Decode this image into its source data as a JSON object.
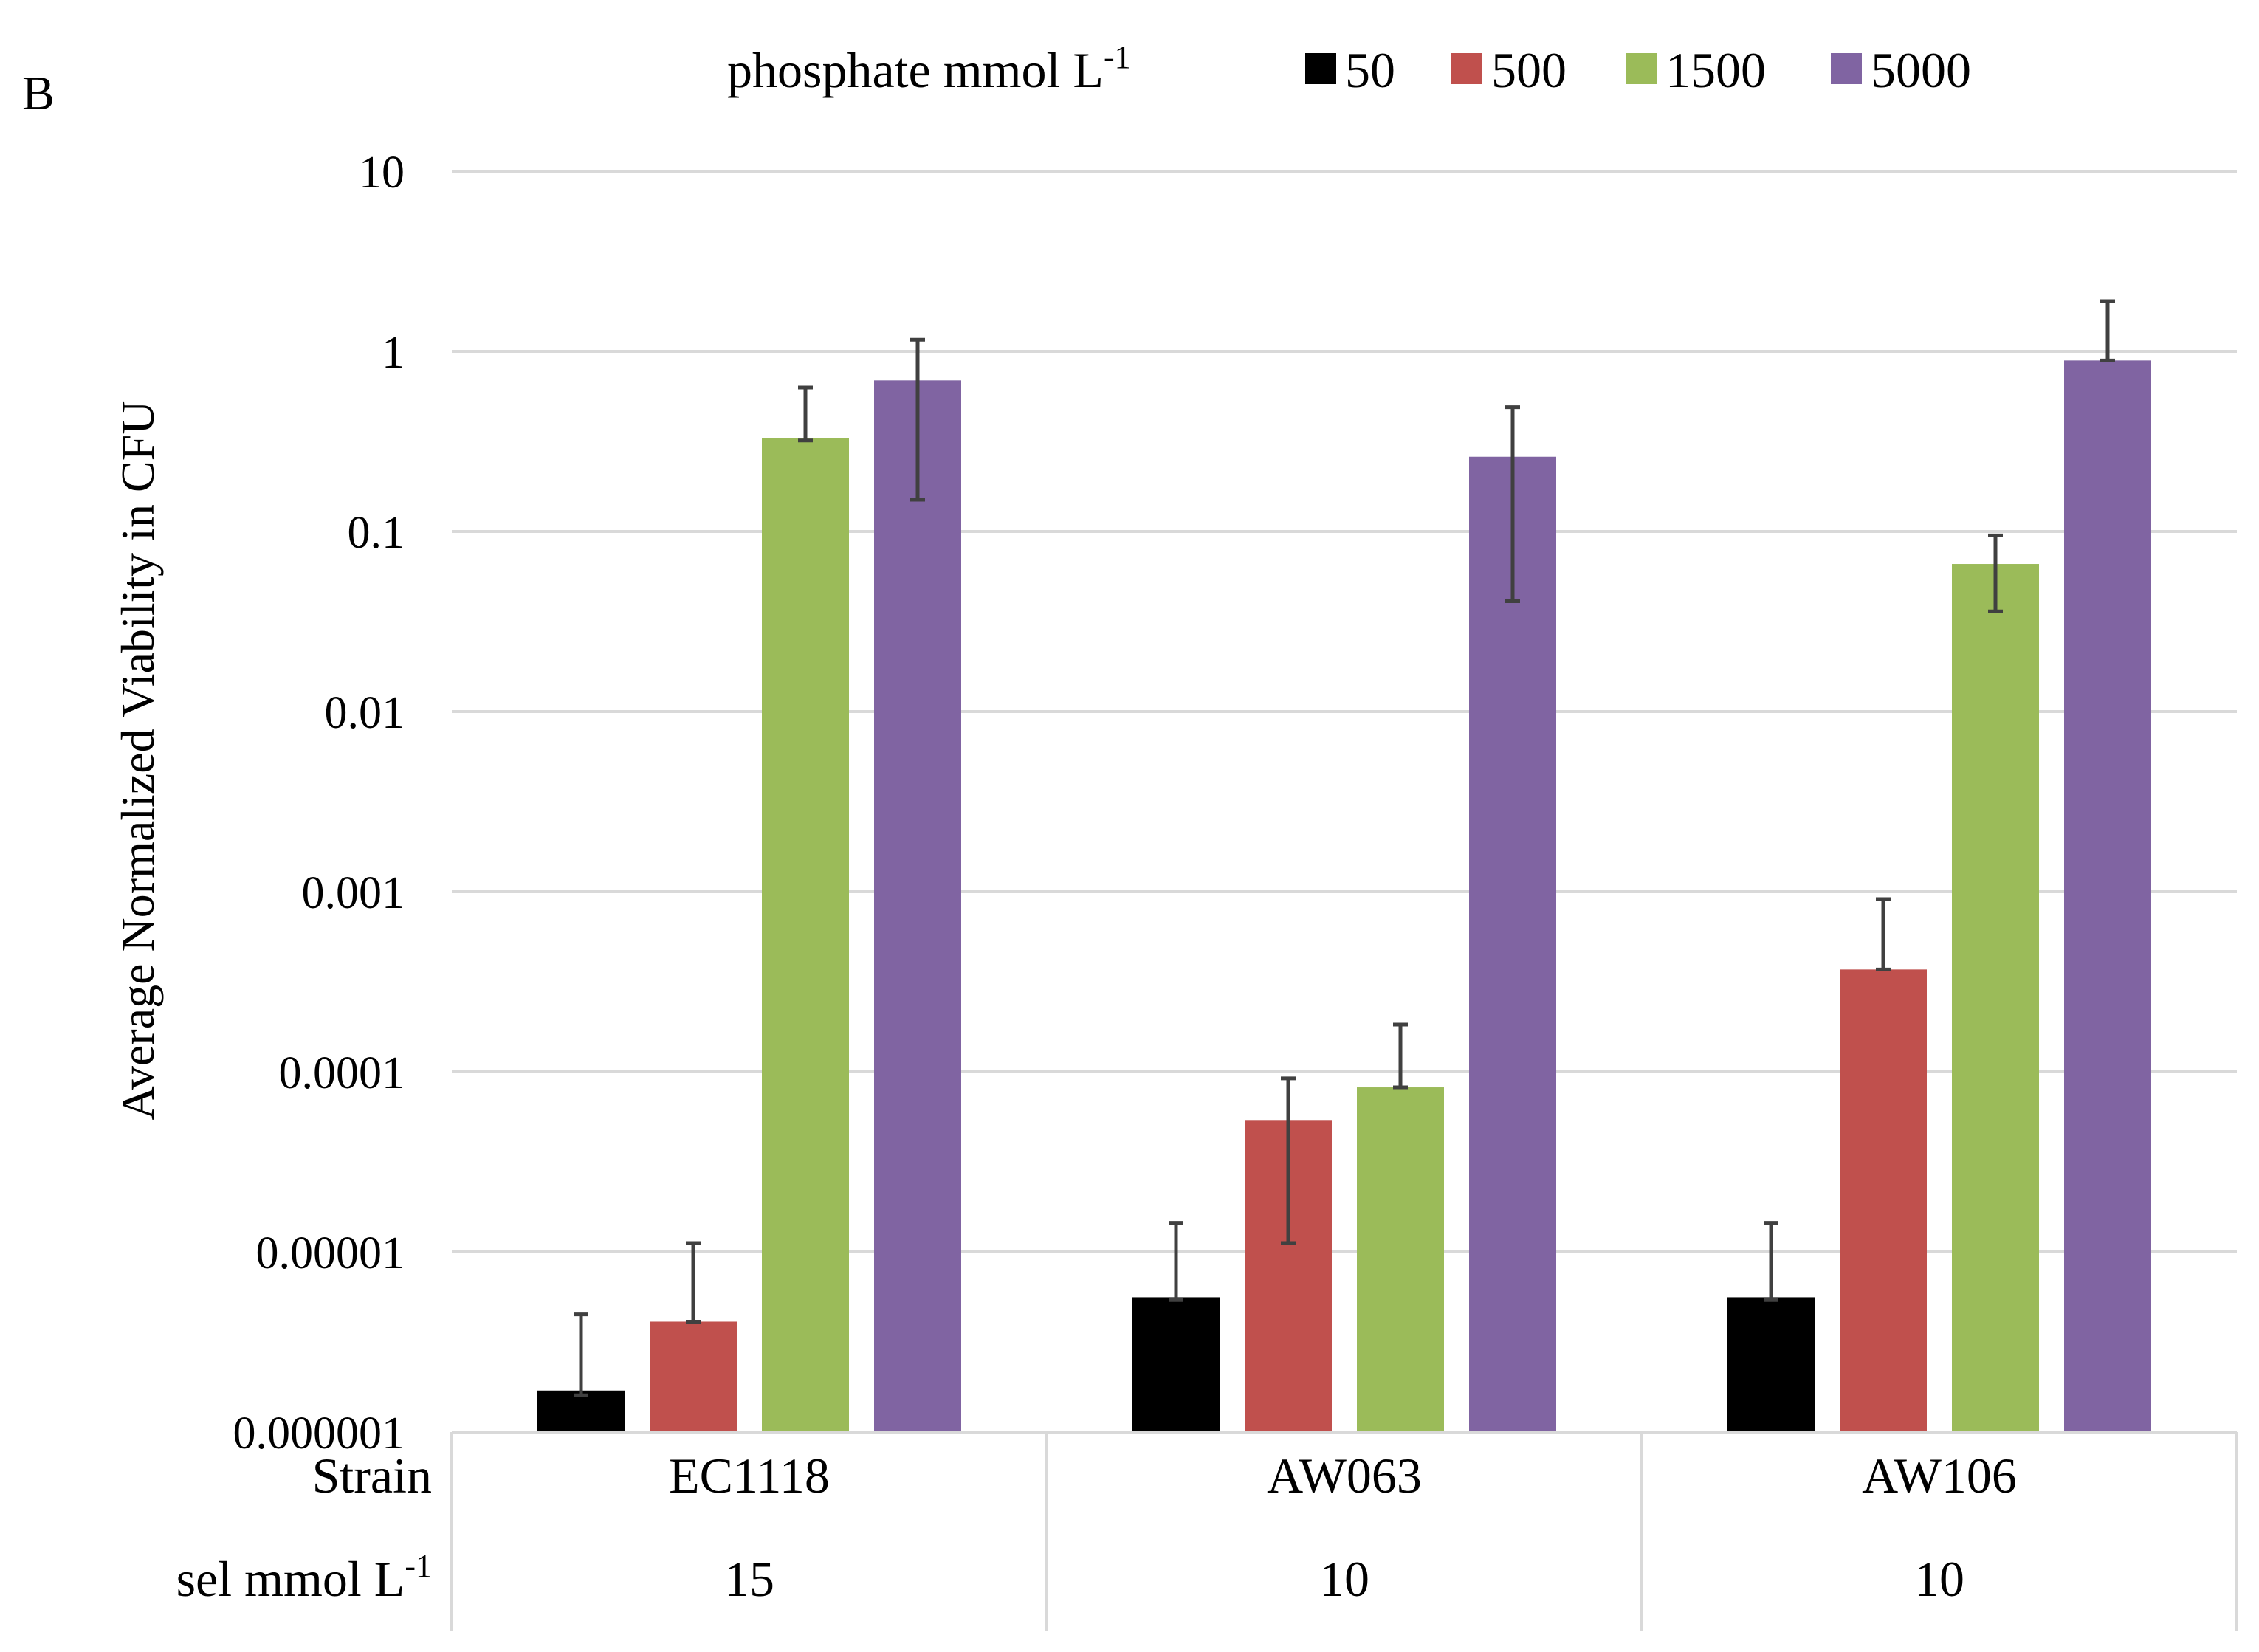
{
  "panel_label": "B",
  "chart_data": {
    "type": "bar",
    "yscale": "log",
    "ylim": [
      1e-06,
      10
    ],
    "ylabel": "Average Normalized Viability in CFU",
    "yticks": [
      "10",
      "1",
      "0.1",
      "0.01",
      "0.001",
      "0.0001",
      "0.00001",
      "0.000001"
    ],
    "ytick_values": [
      10,
      1,
      0.1,
      0.01,
      0.001,
      0.0001,
      1e-05,
      1e-06
    ],
    "grid": true,
    "legend": {
      "title": "phosphate mmol  L",
      "title_sup": "-1",
      "position": "top"
    },
    "categories": [
      "EC1118",
      "AW063",
      "AW106"
    ],
    "category_rows": [
      {
        "label": "Strain",
        "values": [
          "EC1118",
          "AW063",
          "AW106"
        ]
      },
      {
        "label": "sel mmol L",
        "label_sup": "-1",
        "values": [
          "15",
          "10",
          "10"
        ]
      }
    ],
    "series": [
      {
        "name": "50",
        "color": "#000000",
        "values": [
          1.7e-06,
          5.6e-06,
          5.6e-06
        ],
        "err_upper": [
          4.5e-06,
          1.45e-05,
          1.45e-05
        ],
        "err_lower": [
          1.6e-06,
          5.4e-06,
          5.4e-06
        ]
      },
      {
        "name": "500",
        "color": "#c0504d",
        "values": [
          4.1e-06,
          5.4e-05,
          0.00037
        ],
        "err_upper": [
          1.12e-05,
          9.2e-05,
          0.00091
        ],
        "err_lower": [
          4.1e-06,
          1.12e-05,
          0.00037
        ]
      },
      {
        "name": "1500",
        "color": "#9bbb59",
        "values": [
          0.33,
          8.2e-05,
          0.066
        ],
        "err_upper": [
          0.63,
          0.000183,
          0.095
        ],
        "err_lower": [
          0.32,
          8.2e-05,
          0.036
        ]
      },
      {
        "name": "5000",
        "color": "#8064a2",
        "values": [
          0.69,
          0.26,
          0.89
        ],
        "err_upper": [
          1.16,
          0.49,
          1.9
        ],
        "err_lower": [
          0.15,
          0.041,
          0.89
        ]
      }
    ]
  }
}
